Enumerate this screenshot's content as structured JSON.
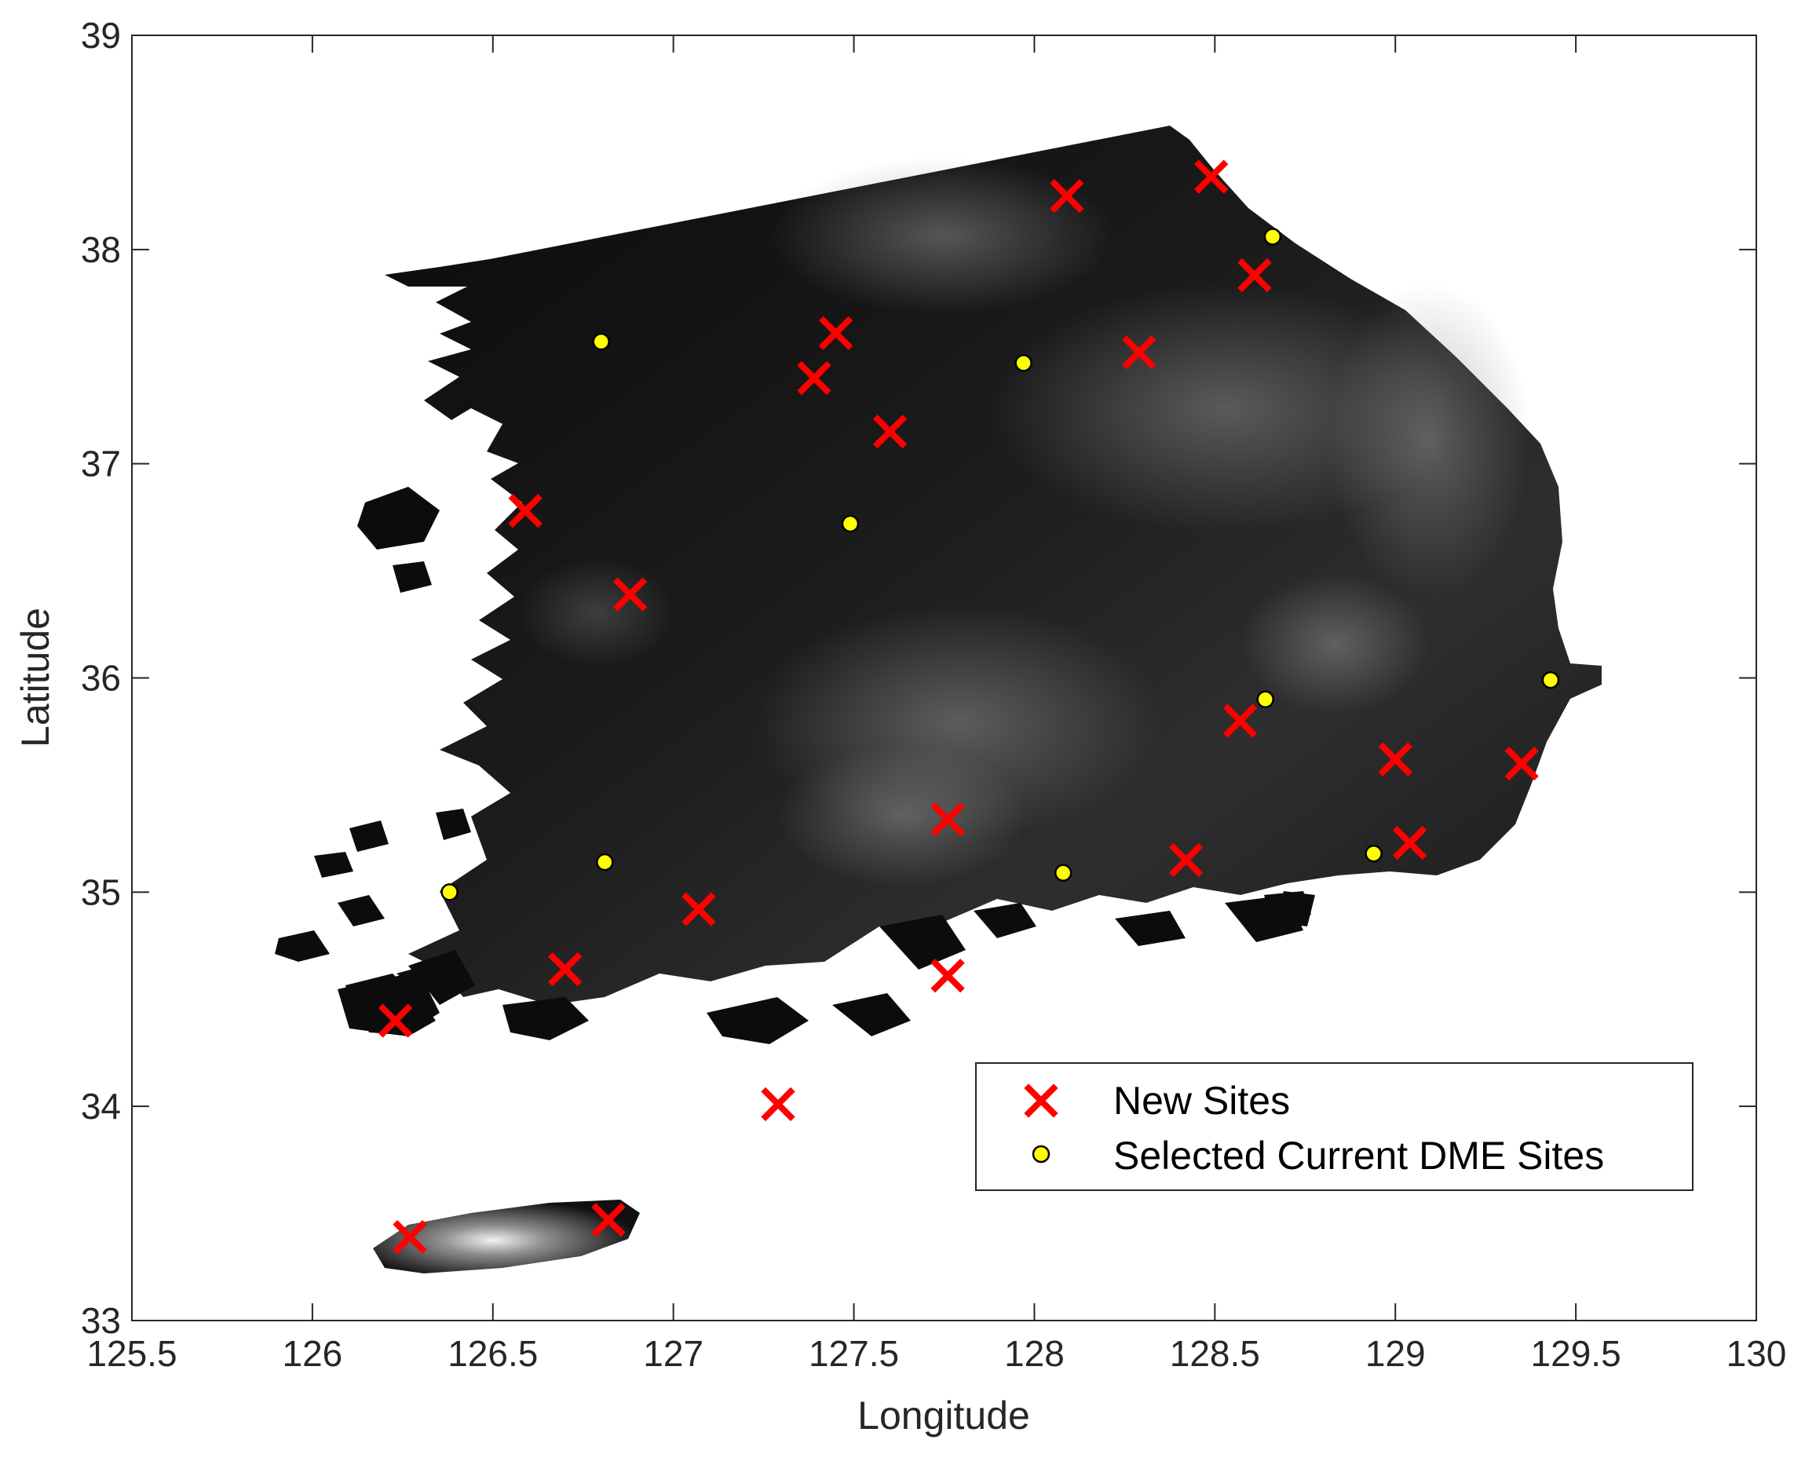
{
  "chart_data": {
    "type": "scatter",
    "background": "grayscale shaded elevation map of the southern Korean peninsula and Jeju island",
    "xlabel": "Longitude",
    "ylabel": "Latitude",
    "xlim": [
      125.5,
      130
    ],
    "ylim": [
      33,
      39
    ],
    "xticks": [
      "125.5",
      "126",
      "126.5",
      "127",
      "127.5",
      "128",
      "128.5",
      "129",
      "129.5",
      "130"
    ],
    "yticks": [
      "33",
      "34",
      "35",
      "36",
      "37",
      "38",
      "39"
    ],
    "grid": false,
    "legend_position": "bottom-right",
    "series": [
      {
        "name": "New Sites",
        "marker": "x",
        "color": "#ff0000",
        "points": [
          {
            "x": 128.09,
            "y": 38.25
          },
          {
            "x": 128.49,
            "y": 38.34
          },
          {
            "x": 128.61,
            "y": 37.88
          },
          {
            "x": 127.45,
            "y": 37.61
          },
          {
            "x": 127.39,
            "y": 37.4
          },
          {
            "x": 128.29,
            "y": 37.52
          },
          {
            "x": 127.6,
            "y": 37.15
          },
          {
            "x": 126.59,
            "y": 36.78
          },
          {
            "x": 126.88,
            "y": 36.39
          },
          {
            "x": 128.57,
            "y": 35.8
          },
          {
            "x": 129.0,
            "y": 35.62
          },
          {
            "x": 129.35,
            "y": 35.6
          },
          {
            "x": 127.76,
            "y": 35.34
          },
          {
            "x": 128.42,
            "y": 35.15
          },
          {
            "x": 129.04,
            "y": 35.23
          },
          {
            "x": 127.07,
            "y": 34.92
          },
          {
            "x": 126.7,
            "y": 34.64
          },
          {
            "x": 127.76,
            "y": 34.61
          },
          {
            "x": 126.23,
            "y": 34.4
          },
          {
            "x": 127.29,
            "y": 34.01
          },
          {
            "x": 126.27,
            "y": 33.39
          },
          {
            "x": 126.82,
            "y": 33.47
          }
        ]
      },
      {
        "name": "Selected Current DME Sites",
        "marker": "circle",
        "color": "#ffff00",
        "points": [
          {
            "x": 128.66,
            "y": 38.06
          },
          {
            "x": 126.8,
            "y": 37.57
          },
          {
            "x": 127.97,
            "y": 37.47
          },
          {
            "x": 127.49,
            "y": 36.72
          },
          {
            "x": 128.64,
            "y": 35.9
          },
          {
            "x": 129.43,
            "y": 35.99
          },
          {
            "x": 126.81,
            "y": 35.14
          },
          {
            "x": 126.38,
            "y": 35.0
          },
          {
            "x": 128.08,
            "y": 35.09
          },
          {
            "x": 128.94,
            "y": 35.18
          }
        ]
      }
    ]
  }
}
